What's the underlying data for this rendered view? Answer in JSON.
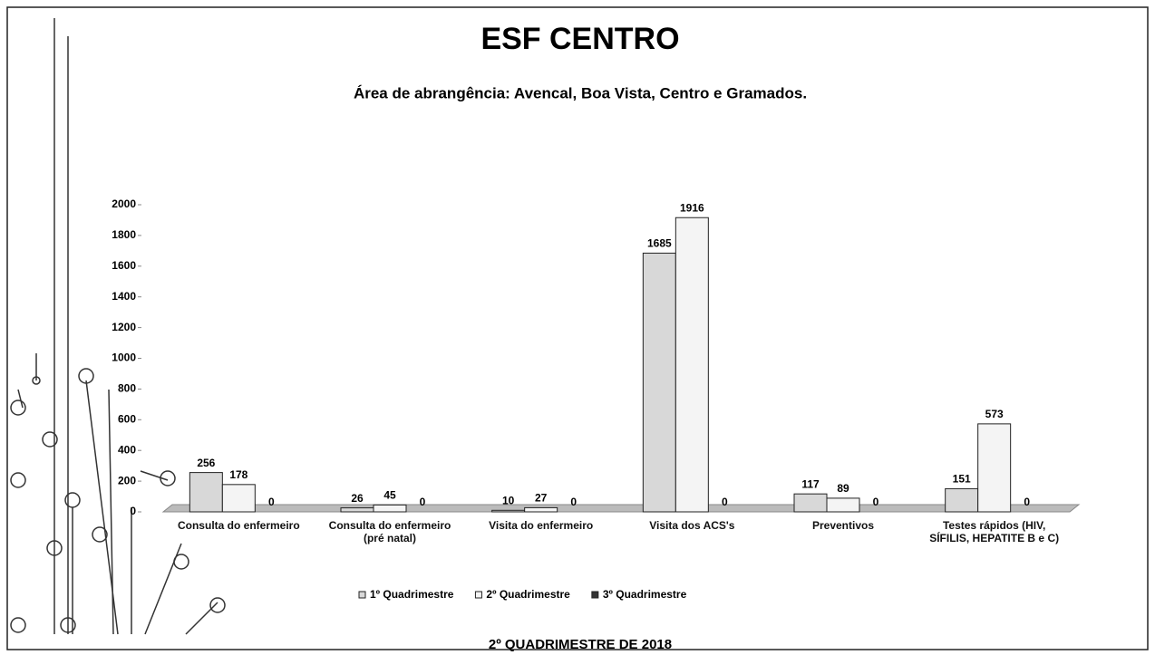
{
  "chart_data": {
    "type": "bar",
    "title": "ESF CENTRO",
    "subtitle": "Área de abrangência: Avencal, Boa Vista, Centro e Gramados.",
    "footer": "2º QUADRIMESTRE DE 2018",
    "categories": [
      "Consulta do enfermeiro",
      "Consulta do enfermeiro (pré natal)",
      "Visita do enfermeiro",
      "Visita dos ACS's",
      "Preventivos",
      "Testes rápidos (HIV, SÍFILIS, HEPATITE B e C)"
    ],
    "series": [
      {
        "name": "1º Quadrimestre",
        "color": "#d8d8d8",
        "values": [
          256,
          26,
          10,
          1685,
          117,
          151
        ]
      },
      {
        "name": "2º Quadrimestre",
        "color": "#f4f4f4",
        "values": [
          178,
          45,
          27,
          1916,
          89,
          573
        ]
      },
      {
        "name": "3º Quadrimestre",
        "color": "#333333",
        "values": [
          0,
          0,
          0,
          0,
          0,
          0
        ]
      }
    ],
    "ylim": [
      0,
      2000
    ],
    "yticks": [
      0,
      200,
      400,
      600,
      800,
      1000,
      1200,
      1400,
      1600,
      1800,
      2000
    ],
    "grid": false,
    "legend": "bottom"
  }
}
